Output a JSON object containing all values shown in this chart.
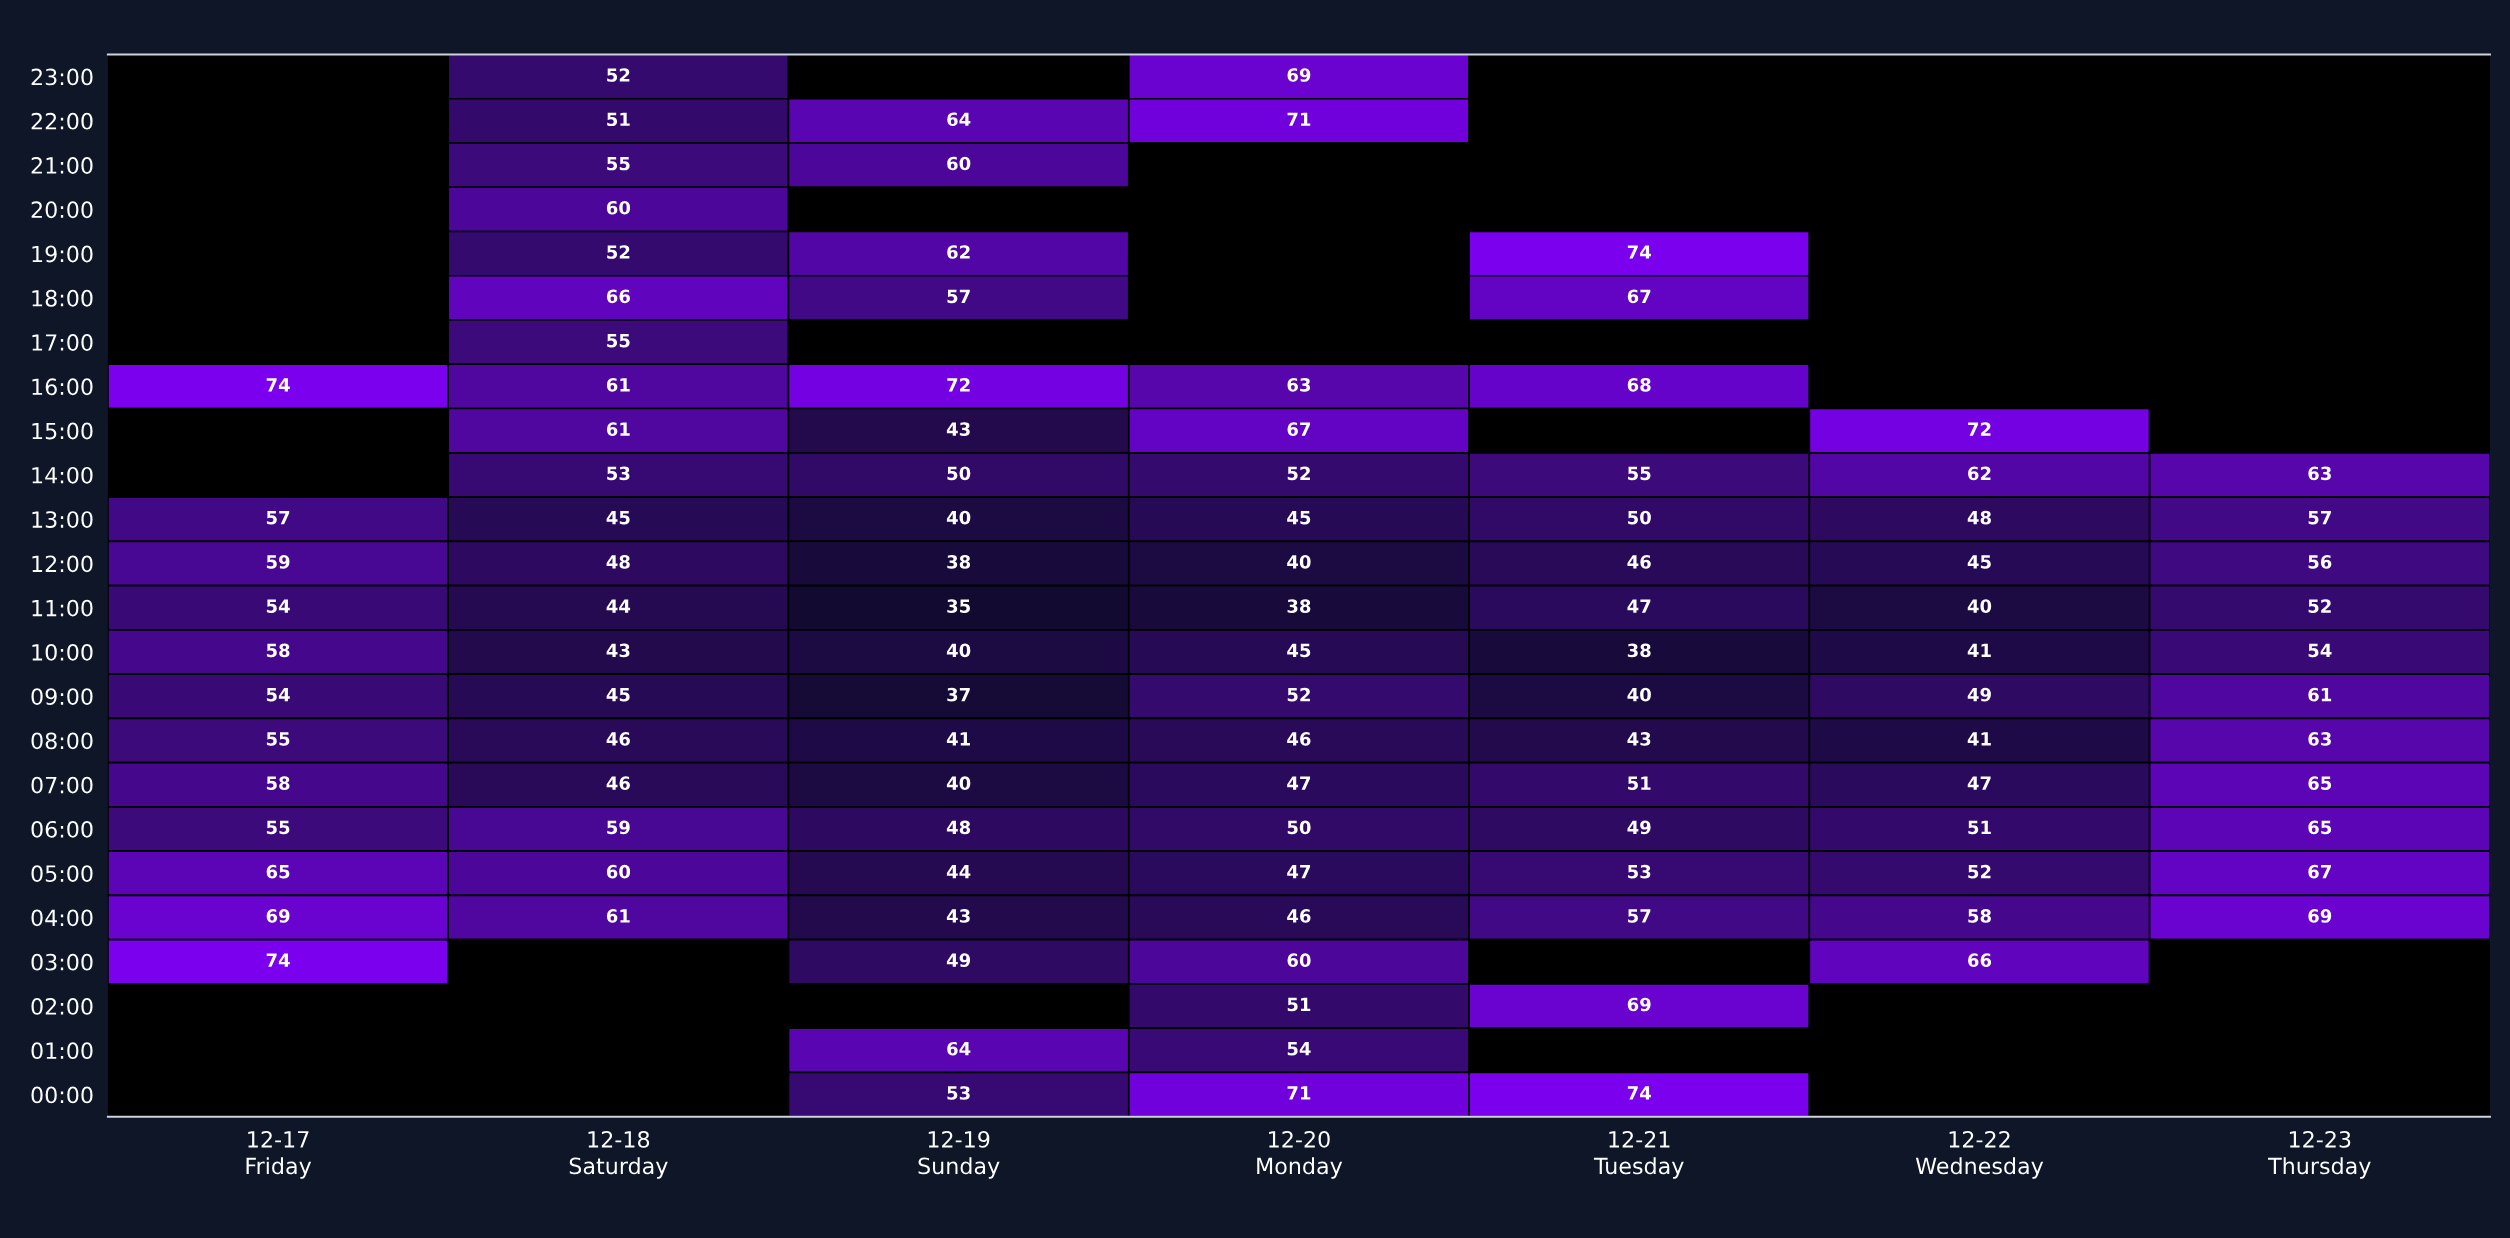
{
  "chart_data": {
    "type": "heatmap",
    "categories": [
      "12-17\nFriday",
      "12-18\nSaturday",
      "12-19\nSunday",
      "12-20\nMonday",
      "12-21\nTuesday",
      "12-22\nWednesday",
      "12-23\nThursday"
    ],
    "y_categories": [
      "23:00",
      "22:00",
      "21:00",
      "20:00",
      "19:00",
      "18:00",
      "17:00",
      "16:00",
      "15:00",
      "14:00",
      "13:00",
      "12:00",
      "11:00",
      "10:00",
      "09:00",
      "08:00",
      "07:00",
      "06:00",
      "05:00",
      "04:00",
      "03:00",
      "02:00",
      "01:00",
      "00:00"
    ],
    "cells": [
      [
        null,
        52,
        null,
        69,
        null,
        null,
        null
      ],
      [
        null,
        51,
        64,
        71,
        null,
        null,
        null
      ],
      [
        null,
        55,
        60,
        null,
        null,
        null,
        null
      ],
      [
        null,
        60,
        null,
        null,
        null,
        null,
        null
      ],
      [
        null,
        52,
        62,
        null,
        74,
        null,
        null
      ],
      [
        null,
        66,
        57,
        null,
        67,
        null,
        null
      ],
      [
        null,
        55,
        null,
        null,
        null,
        null,
        null
      ],
      [
        74,
        61,
        72,
        63,
        68,
        null,
        null
      ],
      [
        null,
        61,
        43,
        67,
        null,
        72,
        null
      ],
      [
        null,
        53,
        50,
        52,
        55,
        62,
        63
      ],
      [
        57,
        45,
        40,
        45,
        50,
        48,
        57
      ],
      [
        59,
        48,
        38,
        40,
        46,
        45,
        56
      ],
      [
        54,
        44,
        35,
        38,
        47,
        40,
        52
      ],
      [
        58,
        43,
        40,
        45,
        38,
        41,
        54
      ],
      [
        54,
        45,
        37,
        52,
        40,
        49,
        61
      ],
      [
        55,
        46,
        41,
        46,
        43,
        41,
        63
      ],
      [
        58,
        46,
        40,
        47,
        51,
        47,
        65
      ],
      [
        55,
        59,
        48,
        50,
        49,
        51,
        65
      ],
      [
        65,
        60,
        44,
        47,
        53,
        52,
        67
      ],
      [
        69,
        61,
        43,
        46,
        57,
        58,
        69
      ],
      [
        74,
        null,
        49,
        60,
        null,
        66,
        null
      ],
      [
        null,
        null,
        null,
        51,
        69,
        null,
        null
      ],
      [
        null,
        null,
        64,
        54,
        null,
        null,
        null
      ],
      [
        null,
        null,
        53,
        71,
        74,
        null,
        null
      ]
    ],
    "data_labels": true
  }
}
